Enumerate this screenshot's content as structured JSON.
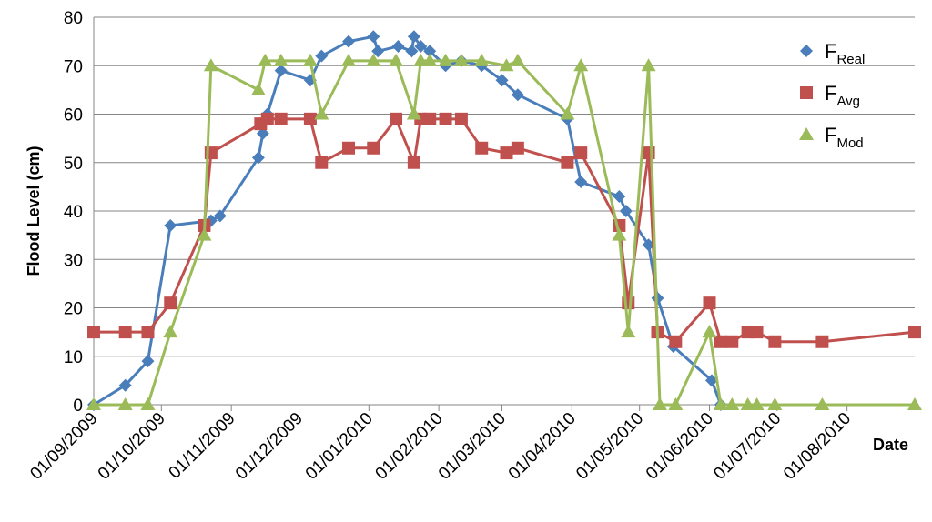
{
  "chart_data": {
    "type": "line",
    "title": "",
    "xlabel": "Date",
    "ylabel": "Flood Level (cm)",
    "ylim": [
      0,
      80
    ],
    "yticks": [
      "0",
      "10",
      "20",
      "30",
      "40",
      "50",
      "60",
      "70",
      "80"
    ],
    "xlim": [
      "2009-09-01",
      "2010-08-31"
    ],
    "xticks": [
      {
        "date": "2009-09-01",
        "label": "01/09/2009"
      },
      {
        "date": "2009-10-01",
        "label": "01/10/2009"
      },
      {
        "date": "2009-11-01",
        "label": "01/11/2009"
      },
      {
        "date": "2009-12-01",
        "label": "01/12/2009"
      },
      {
        "date": "2010-01-01",
        "label": "01/01/2010"
      },
      {
        "date": "2010-02-01",
        "label": "01/02/2010"
      },
      {
        "date": "2010-03-01",
        "label": "01/03/2010"
      },
      {
        "date": "2010-04-01",
        "label": "01/04/2010"
      },
      {
        "date": "2010-05-01",
        "label": "01/05/2010"
      },
      {
        "date": "2010-06-01",
        "label": "01/06/2010"
      },
      {
        "date": "2010-07-01",
        "label": "01/07/2010"
      },
      {
        "date": "2010-08-01",
        "label": "01/08/2010"
      }
    ],
    "grid": "horizontal",
    "legend_position": "right",
    "series": [
      {
        "name": "F",
        "name_sub": "Real",
        "color": "#4A7EBB",
        "marker": "diamond",
        "points": [
          [
            "2009-09-01",
            0
          ],
          [
            "2009-09-15",
            4
          ],
          [
            "2009-09-25",
            9
          ],
          [
            "2009-10-05",
            37
          ],
          [
            "2009-10-23",
            38
          ],
          [
            "2009-10-27",
            39
          ],
          [
            "2009-11-13",
            51
          ],
          [
            "2009-11-15",
            56
          ],
          [
            "2009-11-17",
            60
          ],
          [
            "2009-11-23",
            69
          ],
          [
            "2009-12-06",
            67
          ],
          [
            "2009-12-11",
            72
          ],
          [
            "2009-12-23",
            75
          ],
          [
            "2010-01-03",
            76
          ],
          [
            "2010-01-05",
            73
          ],
          [
            "2010-01-14",
            74
          ],
          [
            "2010-01-20",
            73
          ],
          [
            "2010-01-21",
            76
          ],
          [
            "2010-01-24",
            74
          ],
          [
            "2010-01-28",
            73
          ],
          [
            "2010-02-04",
            70
          ],
          [
            "2010-02-11",
            71
          ],
          [
            "2010-02-20",
            70
          ],
          [
            "2010-03-01",
            67
          ],
          [
            "2010-03-08",
            64
          ],
          [
            "2010-03-30",
            59
          ],
          [
            "2010-04-05",
            46
          ],
          [
            "2010-04-22",
            43
          ],
          [
            "2010-04-25",
            40
          ],
          [
            "2010-05-05",
            33
          ],
          [
            "2010-05-09",
            22
          ],
          [
            "2010-05-16",
            12
          ],
          [
            "2010-06-02",
            5
          ],
          [
            "2010-06-06",
            0
          ]
        ]
      },
      {
        "name": "F",
        "name_sub": "Avg",
        "color": "#C0504D",
        "marker": "square",
        "points": [
          [
            "2009-09-01",
            15
          ],
          [
            "2009-09-15",
            15
          ],
          [
            "2009-09-25",
            15
          ],
          [
            "2009-10-05",
            21
          ],
          [
            "2009-10-20",
            37
          ],
          [
            "2009-10-23",
            52
          ],
          [
            "2009-11-14",
            58
          ],
          [
            "2009-11-17",
            59
          ],
          [
            "2009-11-23",
            59
          ],
          [
            "2009-12-06",
            59
          ],
          [
            "2009-12-11",
            50
          ],
          [
            "2009-12-23",
            53
          ],
          [
            "2010-01-03",
            53
          ],
          [
            "2010-01-13",
            59
          ],
          [
            "2010-01-21",
            50
          ],
          [
            "2010-01-24",
            59
          ],
          [
            "2010-01-28",
            59
          ],
          [
            "2010-02-04",
            59
          ],
          [
            "2010-02-11",
            59
          ],
          [
            "2010-02-20",
            53
          ],
          [
            "2010-03-03",
            52
          ],
          [
            "2010-03-08",
            53
          ],
          [
            "2010-03-30",
            50
          ],
          [
            "2010-04-05",
            52
          ],
          [
            "2010-04-22",
            37
          ],
          [
            "2010-04-26",
            21
          ],
          [
            "2010-05-05",
            52
          ],
          [
            "2010-05-09",
            15
          ],
          [
            "2010-05-17",
            13
          ],
          [
            "2010-06-01",
            21
          ],
          [
            "2010-06-06",
            13
          ],
          [
            "2010-06-11",
            13
          ],
          [
            "2010-06-18",
            15
          ],
          [
            "2010-06-22",
            15
          ],
          [
            "2010-06-30",
            13
          ],
          [
            "2010-07-21",
            13
          ],
          [
            "2010-08-31",
            15
          ]
        ]
      },
      {
        "name": "F",
        "name_sub": "Mod",
        "color": "#9BBB59",
        "marker": "triangle",
        "points": [
          [
            "2009-09-01",
            0
          ],
          [
            "2009-09-15",
            0
          ],
          [
            "2009-09-25",
            0
          ],
          [
            "2009-10-05",
            15
          ],
          [
            "2009-10-20",
            35
          ],
          [
            "2009-10-23",
            70
          ],
          [
            "2009-11-13",
            65
          ],
          [
            "2009-11-16",
            71
          ],
          [
            "2009-11-23",
            71
          ],
          [
            "2009-12-06",
            71
          ],
          [
            "2009-12-11",
            60
          ],
          [
            "2009-12-23",
            71
          ],
          [
            "2010-01-03",
            71
          ],
          [
            "2010-01-13",
            71
          ],
          [
            "2010-01-21",
            60
          ],
          [
            "2010-01-24",
            71
          ],
          [
            "2010-01-28",
            71
          ],
          [
            "2010-02-04",
            71
          ],
          [
            "2010-02-11",
            71
          ],
          [
            "2010-02-20",
            71
          ],
          [
            "2010-03-03",
            70
          ],
          [
            "2010-03-08",
            71
          ],
          [
            "2010-03-30",
            60
          ],
          [
            "2010-04-05",
            70
          ],
          [
            "2010-04-22",
            35
          ],
          [
            "2010-04-26",
            15
          ],
          [
            "2010-05-05",
            70
          ],
          [
            "2010-05-10",
            0
          ],
          [
            "2010-05-17",
            0
          ],
          [
            "2010-06-01",
            15
          ],
          [
            "2010-06-06",
            0
          ],
          [
            "2010-06-11",
            0
          ],
          [
            "2010-06-18",
            0
          ],
          [
            "2010-06-22",
            0
          ],
          [
            "2010-06-30",
            0
          ],
          [
            "2010-07-21",
            0
          ],
          [
            "2010-08-31",
            0
          ]
        ]
      }
    ]
  }
}
